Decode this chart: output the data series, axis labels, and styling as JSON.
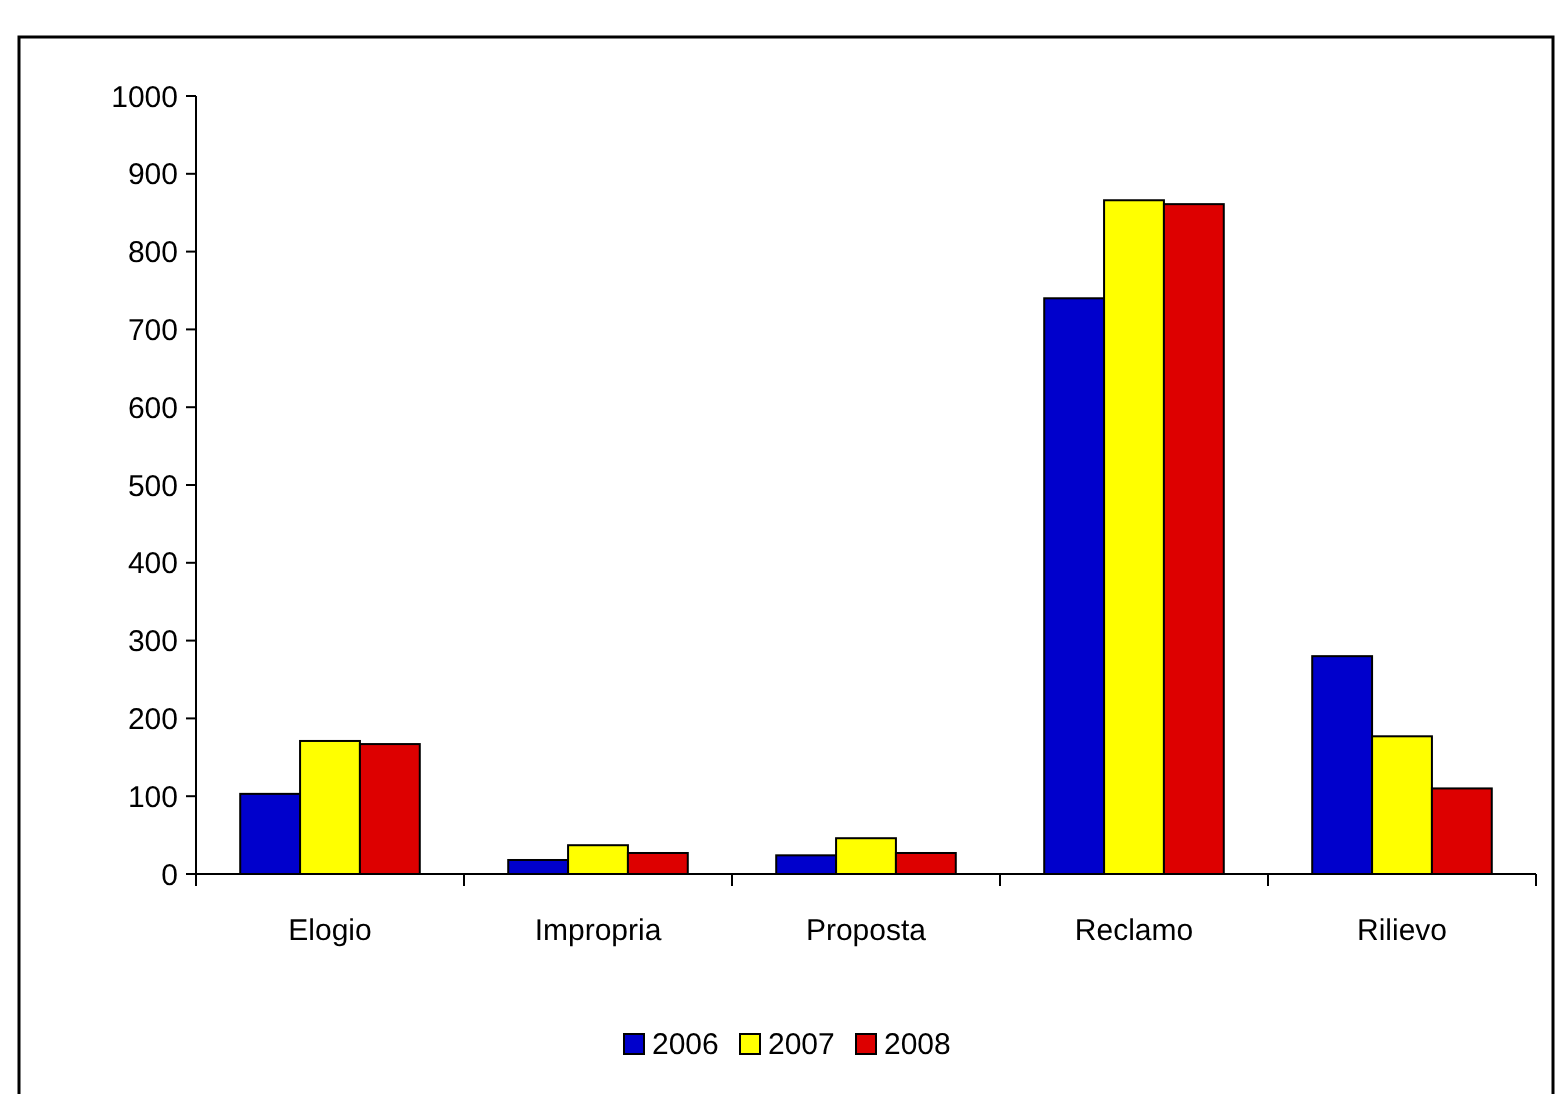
{
  "chart_data": {
    "type": "bar",
    "categories": [
      "Elogio",
      "Impropria",
      "Proposta",
      "Reclamo",
      "Rilievo"
    ],
    "series": [
      {
        "name": "2006",
        "color": "#0000cc",
        "values": [
          103,
          18,
          24,
          740,
          280
        ]
      },
      {
        "name": "2007",
        "color": "#ffff00",
        "values": [
          171,
          37,
          46,
          866,
          177
        ]
      },
      {
        "name": "2008",
        "color": "#dd0000",
        "values": [
          167,
          27,
          27,
          861,
          110
        ]
      }
    ],
    "ylim": [
      0,
      1000
    ],
    "yticks": [
      0,
      100,
      200,
      300,
      400,
      500,
      600,
      700,
      800,
      900,
      1000
    ],
    "grid": false,
    "legend": "bottom"
  }
}
